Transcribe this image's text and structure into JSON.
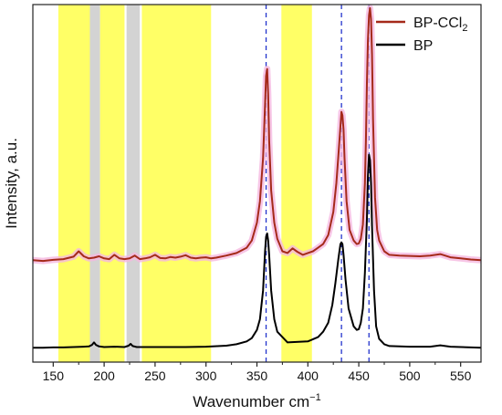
{
  "chart_data": {
    "type": "line",
    "xlabel": "Wavenumber cm",
    "xlabel_sup": "−1",
    "ylabel": "Intensity, a.u.",
    "xlim": [
      130,
      570
    ],
    "xticks": [
      150,
      200,
      250,
      300,
      350,
      400,
      450,
      500,
      550
    ],
    "y_tick_labels": false,
    "grid": false,
    "legend": {
      "position": "top-right",
      "items": [
        {
          "label_main": "BP-CCl",
          "label_sub": "2",
          "color": "#a52a1a"
        },
        {
          "label_main": "BP",
          "label_sub": "",
          "color": "#000000"
        }
      ]
    },
    "highlight_bands": [
      {
        "from": 155,
        "to": 186,
        "color": "#ffff66"
      },
      {
        "from": 186,
        "to": 196,
        "color": "#d3d3d3"
      },
      {
        "from": 196,
        "to": 220,
        "color": "#ffff66"
      },
      {
        "from": 222,
        "to": 235,
        "color": "#d3d3d3"
      },
      {
        "from": 237,
        "to": 305,
        "color": "#ffff66"
      },
      {
        "from": 374,
        "to": 404,
        "color": "#ffff66"
      }
    ],
    "reference_lines": [
      {
        "x": 359,
        "color": "#2233cc",
        "style": "dashed"
      },
      {
        "x": 433,
        "color": "#2233cc",
        "style": "dashed"
      },
      {
        "x": 460,
        "color": "#2233cc",
        "style": "dashed"
      }
    ],
    "series": [
      {
        "name": "BP-CCl2",
        "color": "#a52a1a",
        "halo_color": "#f5b8e0",
        "baseline": 0.285,
        "x": [
          130,
          140,
          150,
          160,
          170,
          175,
          180,
          185,
          190,
          195,
          200,
          205,
          210,
          215,
          220,
          225,
          230,
          235,
          240,
          245,
          250,
          255,
          260,
          265,
          270,
          275,
          280,
          285,
          290,
          295,
          300,
          305,
          310,
          320,
          330,
          340,
          345,
          350,
          353,
          356,
          358,
          359,
          360,
          361,
          362,
          364,
          367,
          370,
          375,
          380,
          385,
          390,
          395,
          400,
          405,
          410,
          415,
          420,
          425,
          428,
          430,
          432,
          433,
          434,
          435,
          436,
          438,
          441,
          445,
          448,
          450,
          452,
          454,
          456,
          457,
          458,
          459,
          460,
          461,
          462,
          463,
          464,
          466,
          468,
          470,
          475,
          480,
          490,
          500,
          510,
          520,
          530,
          540,
          550,
          560,
          570
        ],
        "y": [
          0.285,
          0.283,
          0.286,
          0.288,
          0.295,
          0.31,
          0.296,
          0.29,
          0.292,
          0.296,
          0.29,
          0.288,
          0.3,
          0.29,
          0.288,
          0.29,
          0.298,
          0.288,
          0.29,
          0.293,
          0.3,
          0.291,
          0.29,
          0.294,
          0.292,
          0.295,
          0.299,
          0.292,
          0.29,
          0.292,
          0.293,
          0.29,
          0.292,
          0.298,
          0.305,
          0.32,
          0.34,
          0.39,
          0.45,
          0.57,
          0.72,
          0.8,
          0.82,
          0.75,
          0.62,
          0.48,
          0.39,
          0.345,
          0.31,
          0.305,
          0.318,
          0.308,
          0.3,
          0.305,
          0.31,
          0.32,
          0.33,
          0.355,
          0.42,
          0.5,
          0.58,
          0.66,
          0.7,
          0.69,
          0.65,
          0.57,
          0.45,
          0.37,
          0.34,
          0.33,
          0.332,
          0.345,
          0.385,
          0.5,
          0.62,
          0.78,
          0.9,
          0.97,
          0.99,
          0.96,
          0.86,
          0.68,
          0.46,
          0.37,
          0.34,
          0.31,
          0.3,
          0.298,
          0.297,
          0.296,
          0.298,
          0.302,
          0.293,
          0.29,
          0.287,
          0.285
        ]
      },
      {
        "name": "BP",
        "color": "#000000",
        "baseline": 0.04,
        "x": [
          130,
          140,
          150,
          160,
          170,
          180,
          185,
          188,
          190,
          192,
          195,
          200,
          210,
          220,
          224,
          226,
          228,
          232,
          240,
          260,
          280,
          300,
          320,
          330,
          340,
          345,
          350,
          353,
          356,
          358,
          359,
          360,
          361,
          362,
          364,
          367,
          370,
          380,
          400,
          410,
          415,
          420,
          424,
          427,
          430,
          432,
          433,
          434,
          435,
          437,
          440,
          445,
          448,
          450,
          452,
          454,
          456,
          458,
          459,
          460,
          461,
          462,
          463,
          465,
          467,
          470,
          475,
          480,
          500,
          520,
          530,
          540,
          560,
          570
        ],
        "y": [
          0.04,
          0.04,
          0.041,
          0.041,
          0.042,
          0.043,
          0.044,
          0.048,
          0.055,
          0.048,
          0.044,
          0.042,
          0.043,
          0.042,
          0.046,
          0.051,
          0.045,
          0.042,
          0.042,
          0.042,
          0.042,
          0.043,
          0.046,
          0.05,
          0.058,
          0.067,
          0.09,
          0.12,
          0.2,
          0.31,
          0.35,
          0.36,
          0.34,
          0.3,
          0.2,
          0.12,
          0.085,
          0.055,
          0.058,
          0.07,
          0.085,
          0.11,
          0.16,
          0.22,
          0.29,
          0.33,
          0.335,
          0.33,
          0.3,
          0.23,
          0.15,
          0.1,
          0.09,
          0.092,
          0.11,
          0.15,
          0.25,
          0.4,
          0.52,
          0.58,
          0.565,
          0.5,
          0.38,
          0.2,
          0.1,
          0.065,
          0.05,
          0.045,
          0.043,
          0.043,
          0.047,
          0.043,
          0.041,
          0.04
        ]
      }
    ]
  }
}
